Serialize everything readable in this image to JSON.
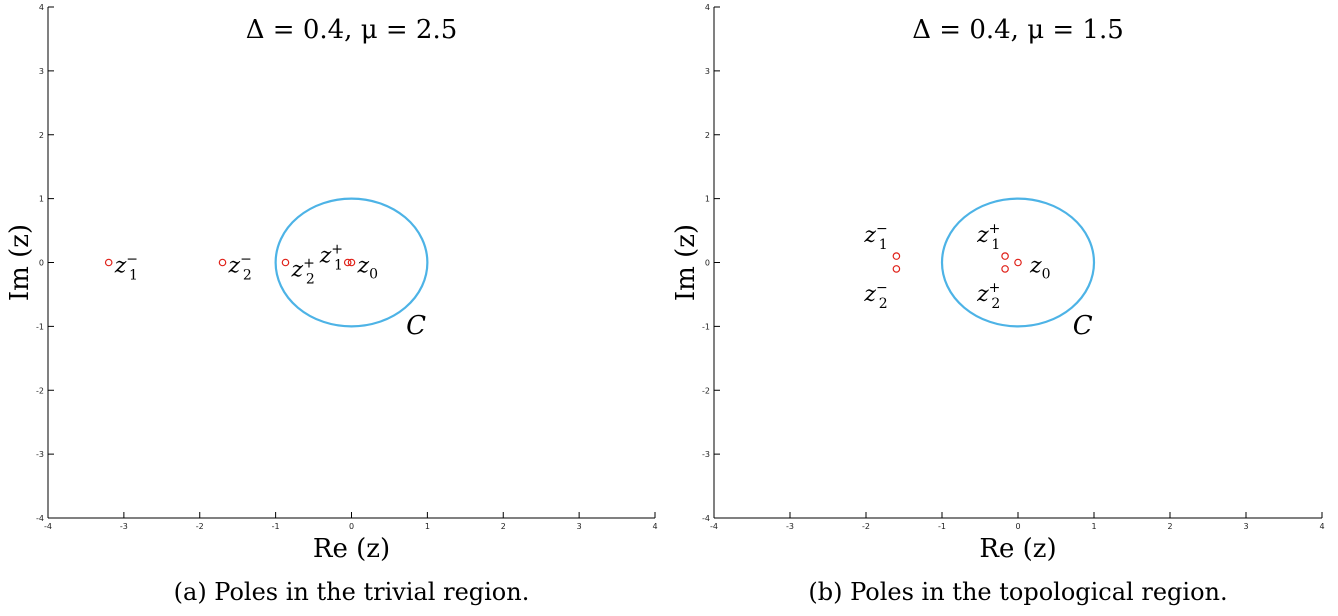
{
  "chart_data": [
    {
      "type": "scatter",
      "title": "Δ = 0.4, μ = 2.5",
      "xlabel": "Re (z)",
      "ylabel": "Im (z)",
      "caption": "(a) Poles in the trivial region.",
      "xlim": [
        -4,
        4
      ],
      "ylim": [
        -4,
        4
      ],
      "xticks": [
        "-4",
        "-3",
        "-2",
        "-1",
        "0",
        "1",
        "2",
        "3",
        "4"
      ],
      "yticks": [
        "-4",
        "-3",
        "-2",
        "-1",
        "0",
        "1",
        "2",
        "3",
        "4"
      ],
      "grid": false,
      "contour": {
        "name": "C",
        "center": [
          0,
          0
        ],
        "rx": 1,
        "ry": 1,
        "color": "#4db3e6"
      },
      "points_color": "#e0221a",
      "points": [
        {
          "x": -3.2,
          "y": 0,
          "base": "z",
          "sub": "1",
          "sup": "−"
        },
        {
          "x": -1.7,
          "y": 0,
          "base": "z",
          "sub": "2",
          "sup": "−"
        },
        {
          "x": -0.87,
          "y": 0,
          "base": "z",
          "sub": "2",
          "sup": "+"
        },
        {
          "x": -0.05,
          "y": 0,
          "base": "z",
          "sub": "1",
          "sup": "+"
        },
        {
          "x": 0.0,
          "y": 0,
          "base": "z",
          "sub": "0",
          "sup": ""
        }
      ]
    },
    {
      "type": "scatter",
      "title": "Δ = 0.4, μ = 1.5",
      "xlabel": "Re (z)",
      "ylabel": "Im (z)",
      "caption": "(b) Poles in the topological region.",
      "xlim": [
        -4,
        4
      ],
      "ylim": [
        -4,
        4
      ],
      "xticks": [
        "-4",
        "-3",
        "-2",
        "-1",
        "0",
        "1",
        "2",
        "3",
        "4"
      ],
      "yticks": [
        "-4",
        "-3",
        "-2",
        "-1",
        "0",
        "1",
        "2",
        "3",
        "4"
      ],
      "grid": false,
      "contour": {
        "name": "C",
        "center": [
          0,
          0
        ],
        "rx": 1,
        "ry": 1,
        "color": "#4db3e6"
      },
      "points_color": "#e0221a",
      "points": [
        {
          "x": -1.6,
          "y": 0.1,
          "base": "z",
          "sub": "1",
          "sup": "−"
        },
        {
          "x": -1.6,
          "y": -0.1,
          "base": "z",
          "sub": "2",
          "sup": "−"
        },
        {
          "x": -0.17,
          "y": 0.1,
          "base": "z",
          "sub": "1",
          "sup": "+"
        },
        {
          "x": -0.17,
          "y": -0.1,
          "base": "z",
          "sub": "2",
          "sup": "+"
        },
        {
          "x": 0.0,
          "y": 0,
          "base": "z",
          "sub": "0",
          "sup": ""
        }
      ]
    }
  ]
}
